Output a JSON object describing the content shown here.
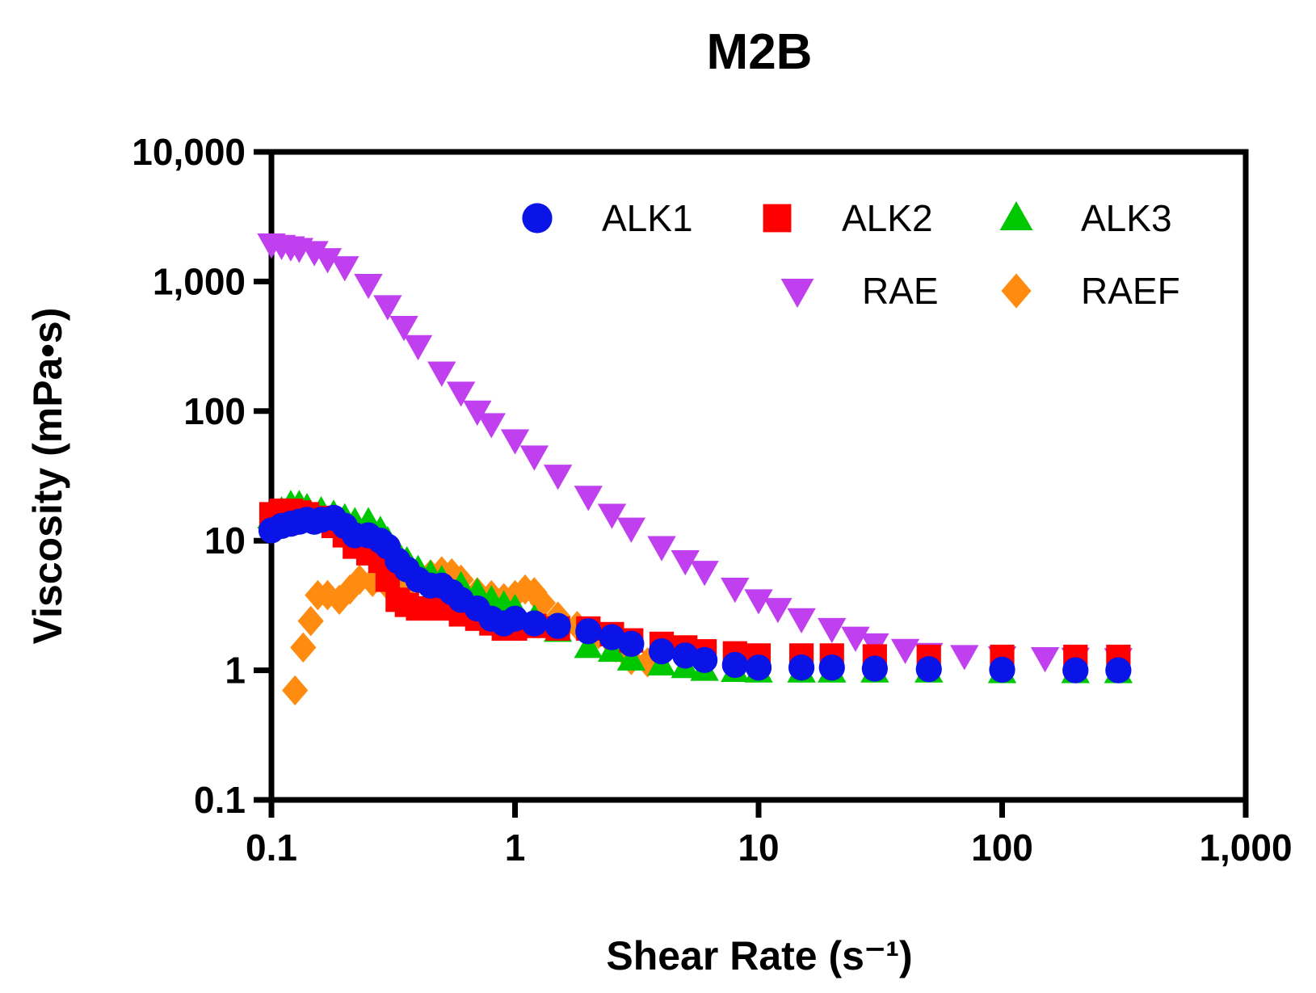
{
  "chart_data": {
    "type": "scatter",
    "title": "M2B",
    "xlabel": "Shear Rate (s⁻¹)",
    "ylabel": "Viscosity (mPa•s)",
    "xscale": "log",
    "yscale": "log",
    "xlim": [
      0.1,
      1000
    ],
    "ylim": [
      0.1,
      10000
    ],
    "xticks": [
      {
        "value": 0.1,
        "label": "0.1"
      },
      {
        "value": 1,
        "label": "1"
      },
      {
        "value": 10,
        "label": "10"
      },
      {
        "value": 100,
        "label": "100"
      },
      {
        "value": 1000,
        "label": "1,000"
      }
    ],
    "yticks": [
      {
        "value": 0.1,
        "label": "0.1"
      },
      {
        "value": 1,
        "label": "1"
      },
      {
        "value": 10,
        "label": "10"
      },
      {
        "value": 100,
        "label": "100"
      },
      {
        "value": 1000,
        "label": "1,000"
      },
      {
        "value": 10000,
        "label": "10,000"
      }
    ],
    "legend_position": "top-right",
    "series": [
      {
        "name": "ALK1",
        "marker": "circle",
        "color": "#0a14e6",
        "points": [
          [
            0.1,
            12
          ],
          [
            0.11,
            13
          ],
          [
            0.12,
            13.5
          ],
          [
            0.13,
            14
          ],
          [
            0.14,
            14.5
          ],
          [
            0.15,
            14
          ],
          [
            0.16,
            14.5
          ],
          [
            0.18,
            15
          ],
          [
            0.2,
            13
          ],
          [
            0.22,
            11
          ],
          [
            0.25,
            11
          ],
          [
            0.28,
            10
          ],
          [
            0.3,
            9
          ],
          [
            0.33,
            7
          ],
          [
            0.36,
            6
          ],
          [
            0.4,
            5
          ],
          [
            0.45,
            4.5
          ],
          [
            0.5,
            4.5
          ],
          [
            0.55,
            4
          ],
          [
            0.6,
            3.5
          ],
          [
            0.7,
            3
          ],
          [
            0.8,
            2.5
          ],
          [
            0.9,
            2.3
          ],
          [
            1,
            2.5
          ],
          [
            1.2,
            2.3
          ],
          [
            1.5,
            2.2
          ],
          [
            2,
            2
          ],
          [
            2.5,
            1.8
          ],
          [
            3,
            1.6
          ],
          [
            4,
            1.4
          ],
          [
            5,
            1.3
          ],
          [
            6,
            1.2
          ],
          [
            8,
            1.1
          ],
          [
            10,
            1.05
          ],
          [
            15,
            1.05
          ],
          [
            20,
            1.05
          ],
          [
            30,
            1.03
          ],
          [
            50,
            1.02
          ],
          [
            100,
            1.01
          ],
          [
            200,
            1.0
          ],
          [
            300,
            1.0
          ]
        ]
      },
      {
        "name": "ALK2",
        "marker": "square",
        "color": "#ff0000",
        "points": [
          [
            0.1,
            16
          ],
          [
            0.11,
            17
          ],
          [
            0.12,
            17
          ],
          [
            0.13,
            16.5
          ],
          [
            0.14,
            16
          ],
          [
            0.16,
            15
          ],
          [
            0.18,
            13
          ],
          [
            0.2,
            11
          ],
          [
            0.22,
            9
          ],
          [
            0.25,
            8
          ],
          [
            0.28,
            7
          ],
          [
            0.3,
            5
          ],
          [
            0.33,
            3.5
          ],
          [
            0.36,
            3.2
          ],
          [
            0.4,
            3
          ],
          [
            0.5,
            3
          ],
          [
            0.6,
            2.7
          ],
          [
            0.7,
            2.5
          ],
          [
            0.8,
            2.3
          ],
          [
            0.9,
            2.1
          ],
          [
            1,
            2.1
          ],
          [
            1.2,
            2.2
          ],
          [
            1.5,
            2.1
          ],
          [
            2,
            2.1
          ],
          [
            2.5,
            1.9
          ],
          [
            3,
            1.7
          ],
          [
            4,
            1.6
          ],
          [
            5,
            1.5
          ],
          [
            6,
            1.4
          ],
          [
            8,
            1.35
          ],
          [
            10,
            1.3
          ],
          [
            15,
            1.3
          ],
          [
            20,
            1.3
          ],
          [
            30,
            1.28
          ],
          [
            50,
            1.27
          ],
          [
            100,
            1.27
          ],
          [
            200,
            1.27
          ],
          [
            300,
            1.27
          ]
        ]
      },
      {
        "name": "ALK3",
        "marker": "triangle-up",
        "color": "#00c800",
        "points": [
          [
            0.1,
            15
          ],
          [
            0.11,
            17
          ],
          [
            0.12,
            19
          ],
          [
            0.13,
            19
          ],
          [
            0.14,
            18
          ],
          [
            0.16,
            17
          ],
          [
            0.18,
            16
          ],
          [
            0.2,
            15
          ],
          [
            0.22,
            14
          ],
          [
            0.25,
            14
          ],
          [
            0.28,
            12
          ],
          [
            0.3,
            10
          ],
          [
            0.33,
            8
          ],
          [
            0.36,
            7
          ],
          [
            0.4,
            6
          ],
          [
            0.45,
            5.5
          ],
          [
            0.5,
            5
          ],
          [
            0.6,
            4.5
          ],
          [
            0.7,
            4
          ],
          [
            0.8,
            3.5
          ],
          [
            0.9,
            3.2
          ],
          [
            1,
            3
          ],
          [
            1.2,
            2.5
          ],
          [
            1.5,
            2
          ],
          [
            2,
            1.5
          ],
          [
            2.5,
            1.4
          ],
          [
            3,
            1.2
          ],
          [
            4,
            1.1
          ],
          [
            5,
            1.05
          ],
          [
            6,
            1.0
          ],
          [
            8,
            0.98
          ],
          [
            10,
            0.97
          ],
          [
            15,
            0.97
          ],
          [
            20,
            0.97
          ],
          [
            30,
            0.97
          ],
          [
            50,
            0.97
          ],
          [
            100,
            0.96
          ],
          [
            200,
            0.96
          ],
          [
            300,
            0.96
          ]
        ]
      },
      {
        "name": "RAE",
        "marker": "triangle-down",
        "color": "#c040f0",
        "points": [
          [
            0.1,
            1950
          ],
          [
            0.11,
            1900
          ],
          [
            0.12,
            1850
          ],
          [
            0.13,
            1800
          ],
          [
            0.15,
            1700
          ],
          [
            0.17,
            1500
          ],
          [
            0.2,
            1300
          ],
          [
            0.25,
            950
          ],
          [
            0.3,
            650
          ],
          [
            0.35,
            450
          ],
          [
            0.4,
            320
          ],
          [
            0.5,
            200
          ],
          [
            0.6,
            140
          ],
          [
            0.7,
            100
          ],
          [
            0.8,
            80
          ],
          [
            1,
            60
          ],
          [
            1.2,
            45
          ],
          [
            1.5,
            32
          ],
          [
            2,
            22
          ],
          [
            2.5,
            16
          ],
          [
            3,
            12.5
          ],
          [
            4,
            9
          ],
          [
            5,
            7
          ],
          [
            6,
            5.8
          ],
          [
            8,
            4.3
          ],
          [
            10,
            3.5
          ],
          [
            12,
            3.0
          ],
          [
            15,
            2.5
          ],
          [
            20,
            2.1
          ],
          [
            25,
            1.8
          ],
          [
            30,
            1.6
          ],
          [
            40,
            1.45
          ],
          [
            50,
            1.35
          ],
          [
            70,
            1.3
          ],
          [
            100,
            1.27
          ],
          [
            150,
            1.25
          ],
          [
            200,
            1.24
          ],
          [
            300,
            1.23
          ]
        ]
      },
      {
        "name": "RAEF",
        "marker": "diamond",
        "color": "#ff8c10",
        "points": [
          [
            0.125,
            0.7
          ],
          [
            0.135,
            1.5
          ],
          [
            0.145,
            2.4
          ],
          [
            0.155,
            3.8
          ],
          [
            0.17,
            3.8
          ],
          [
            0.19,
            3.5
          ],
          [
            0.21,
            4.2
          ],
          [
            0.23,
            5
          ],
          [
            0.26,
            4.8
          ],
          [
            0.3,
            4.5
          ],
          [
            0.33,
            4
          ],
          [
            0.36,
            4.5
          ],
          [
            0.4,
            5
          ],
          [
            0.45,
            5.5
          ],
          [
            0.5,
            5.8
          ],
          [
            0.55,
            5.6
          ],
          [
            0.6,
            5
          ],
          [
            0.7,
            4
          ],
          [
            0.8,
            3.8
          ],
          [
            0.9,
            3.6
          ],
          [
            1,
            3.8
          ],
          [
            1.1,
            4.2
          ],
          [
            1.2,
            4
          ],
          [
            1.3,
            3.3
          ],
          [
            1.5,
            2.6
          ],
          [
            1.8,
            2.2
          ],
          [
            2.2,
            1.9
          ],
          [
            2.6,
            1.5
          ],
          [
            3,
            1.2
          ],
          [
            3.5,
            1.15
          ]
        ]
      }
    ],
    "legend": [
      {
        "name": "ALK1",
        "marker": "circle",
        "color": "#0a14e6"
      },
      {
        "name": "ALK2",
        "marker": "square",
        "color": "#ff0000"
      },
      {
        "name": "ALK3",
        "marker": "triangle-up",
        "color": "#00c800"
      },
      {
        "name": "RAE",
        "marker": "triangle-down",
        "color": "#c040f0"
      },
      {
        "name": "RAEF",
        "marker": "diamond",
        "color": "#ff8c10"
      }
    ]
  }
}
